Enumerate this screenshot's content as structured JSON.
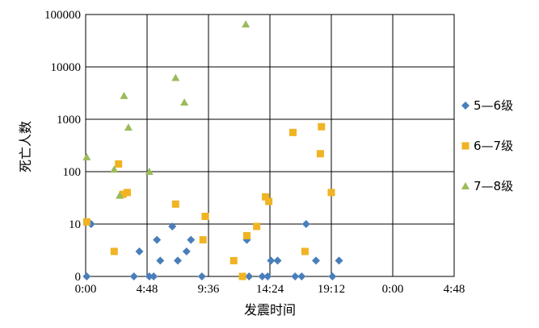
{
  "chart_data": {
    "type": "scatter",
    "title": "",
    "xlabel": "发震时间",
    "ylabel": "死亡人数",
    "y_scale": "log",
    "y_log_floor": 0,
    "x_unit": "hours",
    "x_range": [
      0,
      33.6
    ],
    "y_range": [
      0,
      100000
    ],
    "grid": true,
    "legend_position": "right",
    "x_tick_labels": [
      "0:00",
      "4:48",
      "9:36",
      "14:24",
      "19:12",
      "0:00",
      "4:48"
    ],
    "y_tick_labels": [
      "0",
      "10",
      "100",
      "1000",
      "10000",
      "100000"
    ],
    "series": [
      {
        "name": "5—6级",
        "marker": "diamond",
        "color": "#4a7ebb",
        "points": [
          {
            "x": 0.1,
            "y": 0
          },
          {
            "x": 0.5,
            "y": 10
          },
          {
            "x": 4.4,
            "y": 0
          },
          {
            "x": 4.9,
            "y": 3
          },
          {
            "x": 5.8,
            "y": 0
          },
          {
            "x": 6.2,
            "y": 0
          },
          {
            "x": 6.5,
            "y": 5
          },
          {
            "x": 6.8,
            "y": 2
          },
          {
            "x": 7.9,
            "y": 9
          },
          {
            "x": 8.4,
            "y": 2
          },
          {
            "x": 9.2,
            "y": 3
          },
          {
            "x": 9.6,
            "y": 5
          },
          {
            "x": 10.6,
            "y": 0
          },
          {
            "x": 14.7,
            "y": 5
          },
          {
            "x": 14.9,
            "y": 0
          },
          {
            "x": 16.1,
            "y": 0
          },
          {
            "x": 16.6,
            "y": 0
          },
          {
            "x": 16.9,
            "y": 2
          },
          {
            "x": 17.5,
            "y": 2
          },
          {
            "x": 19.1,
            "y": 0
          },
          {
            "x": 19.7,
            "y": 0
          },
          {
            "x": 20.1,
            "y": 10
          },
          {
            "x": 21.0,
            "y": 2
          },
          {
            "x": 22.5,
            "y": 0
          },
          {
            "x": 23.1,
            "y": 2
          }
        ]
      },
      {
        "name": "6—7级",
        "marker": "square",
        "color": "#f0b323",
        "points": [
          {
            "x": 0.1,
            "y": 11
          },
          {
            "x": 2.6,
            "y": 3
          },
          {
            "x": 3.0,
            "y": 140
          },
          {
            "x": 3.4,
            "y": 37
          },
          {
            "x": 3.8,
            "y": 40
          },
          {
            "x": 8.2,
            "y": 24
          },
          {
            "x": 10.7,
            "y": 5
          },
          {
            "x": 10.9,
            "y": 14
          },
          {
            "x": 13.5,
            "y": 2
          },
          {
            "x": 14.3,
            "y": 0
          },
          {
            "x": 14.7,
            "y": 6
          },
          {
            "x": 15.6,
            "y": 9
          },
          {
            "x": 16.4,
            "y": 33
          },
          {
            "x": 16.7,
            "y": 27
          },
          {
            "x": 18.9,
            "y": 560
          },
          {
            "x": 20.0,
            "y": 3
          },
          {
            "x": 21.4,
            "y": 220
          },
          {
            "x": 21.5,
            "y": 720
          },
          {
            "x": 22.4,
            "y": 40
          }
        ]
      },
      {
        "name": "7—8级",
        "marker": "triangle",
        "color": "#9bbb59",
        "points": [
          {
            "x": 0.1,
            "y": 190
          },
          {
            "x": 2.6,
            "y": 110
          },
          {
            "x": 3.1,
            "y": 35
          },
          {
            "x": 3.5,
            "y": 2800
          },
          {
            "x": 3.9,
            "y": 700
          },
          {
            "x": 5.8,
            "y": 100
          },
          {
            "x": 8.2,
            "y": 6200
          },
          {
            "x": 9.0,
            "y": 2100
          },
          {
            "x": 14.6,
            "y": 65000
          }
        ]
      }
    ]
  }
}
